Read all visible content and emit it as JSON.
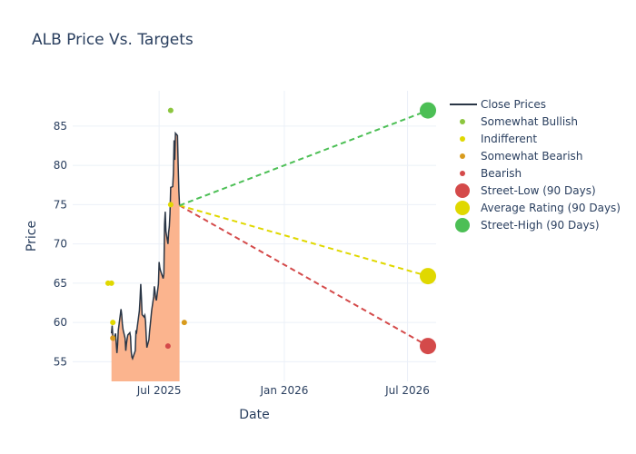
{
  "chart_data": {
    "type": "line",
    "title": "ALB Price Vs. Targets",
    "xlabel": "Date",
    "ylabel": "Price",
    "x_ticks": [
      {
        "label": "Jul 2025",
        "date": "2025-07-01"
      },
      {
        "label": "Jan 2026",
        "date": "2026-01-01"
      },
      {
        "label": "Jul 2026",
        "date": "2026-07-01"
      }
    ],
    "y_ticks": [
      55,
      60,
      65,
      70,
      75,
      80,
      85
    ],
    "xlim": [
      "2025-02-24",
      "2026-08-12"
    ],
    "ylim": [
      52.5,
      89.5
    ],
    "grid": true,
    "legend_position": "right",
    "close_prices": [
      [
        "2025-04-22",
        58.6
      ],
      [
        "2025-04-23",
        59.6
      ],
      [
        "2025-04-24",
        58.3
      ],
      [
        "2025-04-25",
        57.7
      ],
      [
        "2025-04-28",
        58.6
      ],
      [
        "2025-04-29",
        57.3
      ],
      [
        "2025-04-30",
        56.1
      ],
      [
        "2025-05-01",
        57.2
      ],
      [
        "2025-05-02",
        59.0
      ],
      [
        "2025-05-05",
        61.0
      ],
      [
        "2025-05-06",
        61.7
      ],
      [
        "2025-05-07",
        61.0
      ],
      [
        "2025-05-08",
        59.8
      ],
      [
        "2025-05-09",
        59.1
      ],
      [
        "2025-05-12",
        58.0
      ],
      [
        "2025-05-13",
        56.4
      ],
      [
        "2025-05-14",
        57.3
      ],
      [
        "2025-05-15",
        57.9
      ],
      [
        "2025-05-16",
        58.4
      ],
      [
        "2025-05-19",
        58.7
      ],
      [
        "2025-05-20",
        58.2
      ],
      [
        "2025-05-21",
        56.3
      ],
      [
        "2025-05-22",
        55.6
      ],
      [
        "2025-05-23",
        55.4
      ],
      [
        "2025-05-27",
        56.4
      ],
      [
        "2025-05-28",
        59.0
      ],
      [
        "2025-05-29",
        58.8
      ],
      [
        "2025-05-30",
        59.5
      ],
      [
        "2025-06-02",
        61.5
      ],
      [
        "2025-06-03",
        63.0
      ],
      [
        "2025-06-04",
        64.9
      ],
      [
        "2025-06-05",
        63.1
      ],
      [
        "2025-06-06",
        61.0
      ],
      [
        "2025-06-09",
        60.7
      ],
      [
        "2025-06-10",
        60.9
      ],
      [
        "2025-06-11",
        60.2
      ],
      [
        "2025-06-12",
        58.3
      ],
      [
        "2025-06-13",
        56.8
      ],
      [
        "2025-06-16",
        57.8
      ],
      [
        "2025-06-17",
        58.9
      ],
      [
        "2025-06-18",
        59.7
      ],
      [
        "2025-06-20",
        61.5
      ],
      [
        "2025-06-23",
        63.3
      ],
      [
        "2025-06-24",
        64.6
      ],
      [
        "2025-06-25",
        63.9
      ],
      [
        "2025-06-26",
        63.1
      ],
      [
        "2025-06-27",
        62.8
      ],
      [
        "2025-06-30",
        64.9
      ],
      [
        "2025-07-01",
        67.7
      ],
      [
        "2025-07-02",
        67.0
      ],
      [
        "2025-07-03",
        66.6
      ],
      [
        "2025-07-07",
        65.6
      ],
      [
        "2025-07-08",
        66.2
      ],
      [
        "2025-07-09",
        72.5
      ],
      [
        "2025-07-10",
        74.1
      ],
      [
        "2025-07-11",
        71.6
      ],
      [
        "2025-07-14",
        70.0
      ],
      [
        "2025-07-15",
        71.5
      ],
      [
        "2025-07-16",
        72.2
      ],
      [
        "2025-07-17",
        73.9
      ],
      [
        "2025-07-18",
        77.2
      ],
      [
        "2025-07-21",
        77.3
      ],
      [
        "2025-07-22",
        79.0
      ],
      [
        "2025-07-23",
        83.2
      ],
      [
        "2025-07-24",
        80.7
      ],
      [
        "2025-07-25",
        84.1
      ],
      [
        "2025-07-28",
        83.8
      ],
      [
        "2025-07-29",
        80.0
      ],
      [
        "2025-07-30",
        76.8
      ],
      [
        "2025-07-31",
        74.9
      ]
    ],
    "ratings": [
      {
        "category": "Somewhat Bullish",
        "color": "#8cc63f",
        "points": [
          [
            "2025-07-18",
            87
          ]
        ]
      },
      {
        "category": "Indifferent",
        "color": "#e0d800",
        "points": [
          [
            "2025-04-17",
            65
          ],
          [
            "2025-04-22",
            65
          ],
          [
            "2025-04-24",
            60
          ],
          [
            "2025-07-18",
            75
          ]
        ]
      },
      {
        "category": "Somewhat Bearish",
        "color": "#d89b1d",
        "points": [
          [
            "2025-04-24",
            58
          ],
          [
            "2025-08-07",
            60
          ]
        ]
      },
      {
        "category": "Bearish",
        "color": "#d44a4a",
        "points": [
          [
            "2025-07-14",
            57
          ]
        ]
      }
    ],
    "targets": {
      "start": [
        "2025-07-31",
        74.9
      ],
      "end_date": "2026-07-31",
      "items": [
        {
          "name": "Street-Low (90 Days)",
          "value": 57,
          "color": "#d44a4a"
        },
        {
          "name": "Average Rating (90 Days)",
          "value": 65.9,
          "color": "#e0d800"
        },
        {
          "name": "Street-High (90 Days)",
          "value": 87,
          "color": "#4cbf55"
        }
      ]
    },
    "legend": [
      {
        "label": "Close Prices",
        "kind": "line",
        "color": "#2a3646"
      },
      {
        "label": "Somewhat Bullish",
        "kind": "dot",
        "color": "#8cc63f"
      },
      {
        "label": "Indifferent",
        "kind": "dot",
        "color": "#e0d800"
      },
      {
        "label": "Somewhat Bearish",
        "kind": "dot",
        "color": "#d89b1d"
      },
      {
        "label": "Bearish",
        "kind": "dot",
        "color": "#d44a4a"
      },
      {
        "label": "Street-Low (90 Days)",
        "kind": "bigdot",
        "color": "#d44a4a"
      },
      {
        "label": "Average Rating (90 Days)",
        "kind": "bigdot",
        "color": "#e0d800"
      },
      {
        "label": "Street-High (90 Days)",
        "kind": "bigdot",
        "color": "#4cbf55"
      }
    ],
    "colors": {
      "area_fill": "#fbb48e",
      "price_line": "#2a3646",
      "grid": "#ebf0f8",
      "text": "#2a3f5f"
    }
  }
}
